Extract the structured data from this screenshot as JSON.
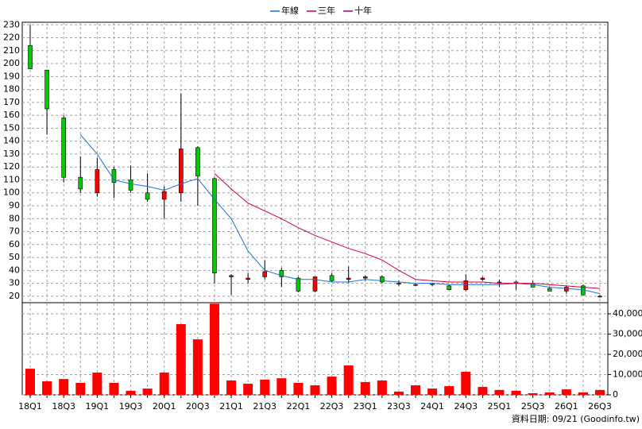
{
  "chart_data": {
    "type": "candlestick",
    "categories": [
      "18Q1",
      null,
      "18Q3",
      null,
      "19Q1",
      null,
      "19Q3",
      null,
      "20Q1",
      null,
      "20Q3",
      null,
      "21Q1",
      null,
      "21Q3",
      null,
      "22Q1",
      null,
      "22Q3",
      null,
      "23Q1",
      null,
      "23Q3",
      null,
      "24Q1",
      null,
      "24Q3",
      null,
      "25Q1",
      null,
      "25Q3",
      null,
      "26Q1",
      null,
      "26Q3"
    ],
    "open": [
      214,
      195,
      158,
      112,
      100,
      118,
      110,
      100,
      95,
      100,
      135,
      111,
      35,
      33,
      35,
      40,
      34,
      24,
      36,
      33,
      34,
      35,
      30,
      29,
      29,
      28,
      25,
      33,
      30,
      31,
      30,
      26,
      24,
      28,
      20
    ],
    "high": [
      230,
      195,
      160,
      128,
      127,
      120,
      121,
      115,
      105,
      177,
      136,
      112,
      37,
      38,
      48,
      42,
      35,
      35,
      38,
      43,
      36,
      36,
      32,
      30,
      30,
      29,
      37,
      35,
      33,
      32,
      32,
      27,
      28,
      29,
      21
    ],
    "low": [
      196,
      145,
      108,
      100,
      97,
      96,
      100,
      93,
      80,
      93,
      90,
      30,
      21,
      30,
      33,
      27,
      23,
      23,
      31,
      30,
      32,
      30,
      28,
      28,
      28,
      25,
      24,
      32,
      27,
      25,
      27,
      24,
      22,
      21,
      19
    ],
    "close": [
      196,
      165,
      112,
      103,
      118,
      108,
      102,
      95,
      101,
      134,
      113,
      38,
      36,
      34,
      39,
      35,
      24,
      35,
      32,
      34,
      35,
      31,
      30,
      29,
      30,
      25,
      32,
      34,
      31,
      30,
      27,
      24,
      27,
      21,
      20
    ],
    "up_color": "#ff0000",
    "down_color": "#00cc00",
    "series": [
      {
        "name": "年線",
        "color": "#1f6fd0",
        "values": [
          null,
          null,
          null,
          145,
          130,
          110,
          107,
          105,
          102,
          107,
          111,
          95,
          80,
          55,
          40,
          36,
          33,
          33,
          31,
          31,
          33,
          32,
          31,
          30,
          30,
          29,
          29,
          29,
          29,
          30,
          29,
          27,
          26,
          25,
          22
        ]
      },
      {
        "name": "三年",
        "color": "#d0003c",
        "values": [
          null,
          null,
          null,
          null,
          null,
          null,
          null,
          null,
          null,
          null,
          null,
          115,
          103,
          92,
          86,
          80,
          73,
          67,
          62,
          57,
          53,
          48,
          40,
          33,
          32,
          31,
          31,
          31,
          30,
          30,
          30,
          29,
          28,
          27,
          26
        ]
      },
      {
        "name": "十年",
        "color": "#a0007a",
        "values": [
          null,
          null,
          null,
          null,
          null,
          null,
          null,
          null,
          null,
          null,
          null,
          null,
          null,
          null,
          null,
          null,
          null,
          null,
          null,
          null,
          null,
          null,
          null,
          null,
          null,
          null,
          null,
          null,
          null,
          null,
          null,
          null,
          null,
          null,
          null
        ]
      }
    ],
    "ylim": [
      15,
      232
    ],
    "yticks": [
      20,
      30,
      40,
      50,
      60,
      70,
      80,
      90,
      100,
      110,
      120,
      130,
      140,
      150,
      160,
      170,
      180,
      190,
      200,
      210,
      220,
      230
    ],
    "grid": true,
    "volume": {
      "color": "#ff0000",
      "values": [
        12900,
        6700,
        7800,
        5900,
        11000,
        5900,
        2000,
        3100,
        11000,
        34900,
        27400,
        45000,
        7100,
        5500,
        7500,
        8200,
        5900,
        4700,
        9000,
        14500,
        6300,
        7100,
        1600,
        4700,
        3100,
        4300,
        11400,
        3900,
        2400,
        2000,
        800,
        1200,
        2700,
        1200,
        2400
      ],
      "ylim": [
        0,
        45500
      ],
      "yticks": [
        0,
        {
          "value": 10000,
          "label": "10,000"
        },
        {
          "value": 20000,
          "label": "20,000"
        },
        {
          "value": 30000,
          "label": "30,000"
        },
        {
          "value": 40000,
          "label": "40,000"
        }
      ]
    },
    "footer": "資料日期: 09/21  (Goodinfo.tw)"
  }
}
